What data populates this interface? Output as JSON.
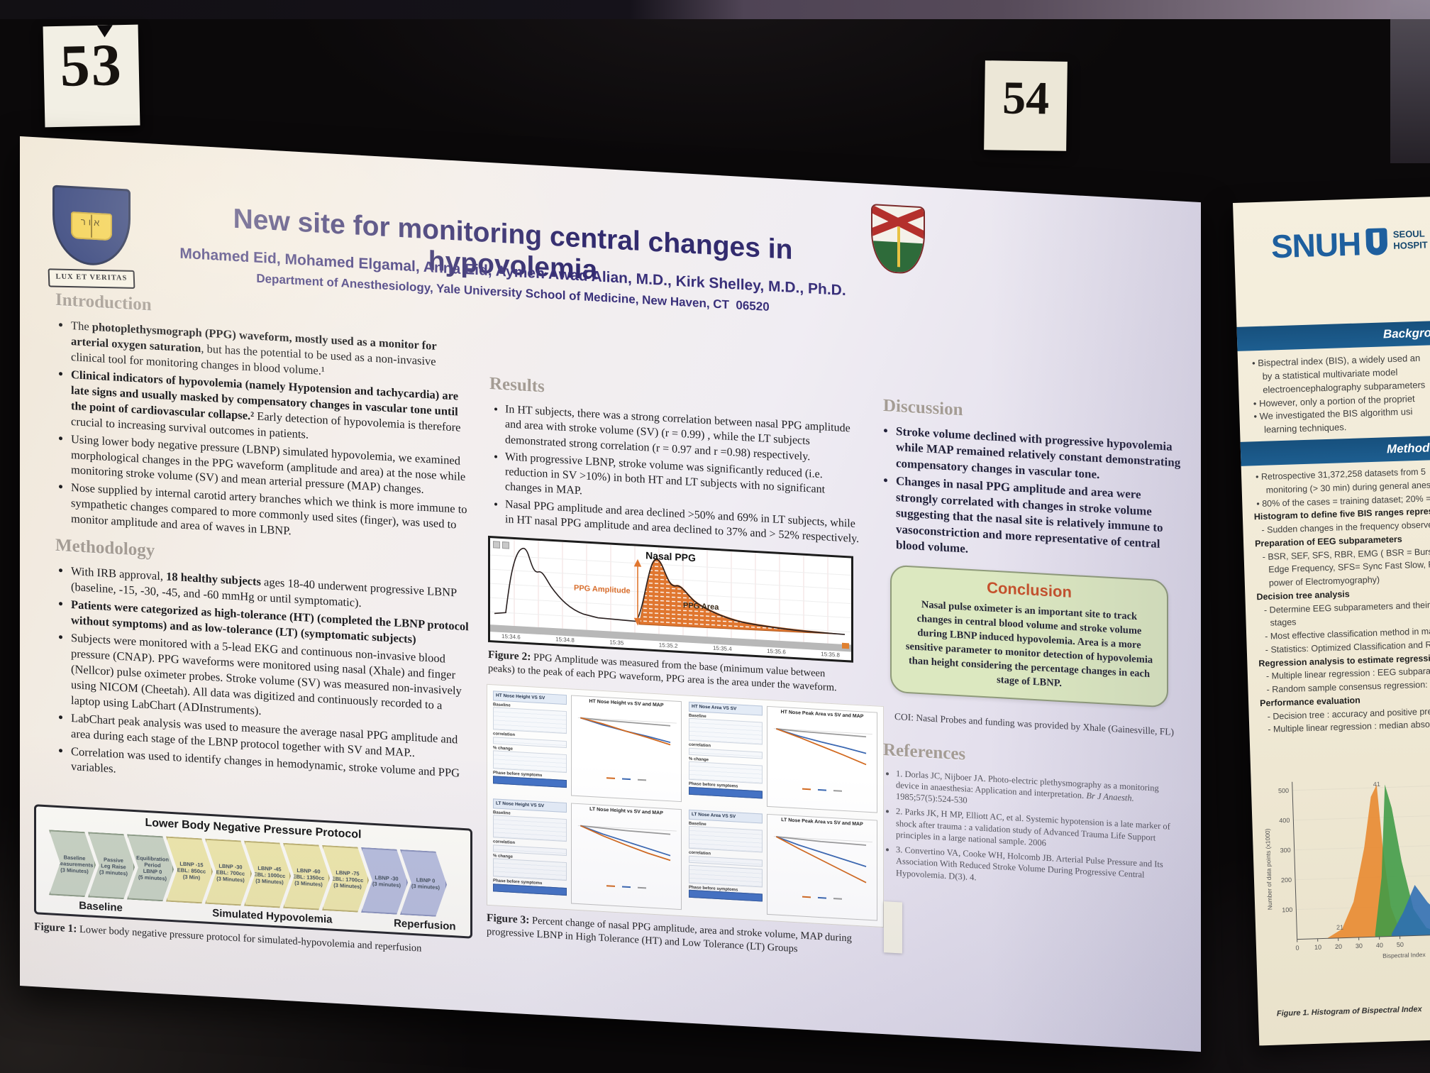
{
  "colors": {
    "title-navy": "#322b6e",
    "heading-gray": "#a49c94",
    "accent-orange": "#d96f2e",
    "conclusion-bg": "#dce8c0",
    "conclusion-title": "#c5512c",
    "chevron-green": "#c9d3c3",
    "chevron-yellow": "#efe8ac",
    "chevron-blue": "#b8bedd",
    "snuh-blue": "#1e5f9e",
    "banner-blue": "#1a5a8c"
  },
  "scene": {
    "card_left": "53",
    "card_right": "54"
  },
  "poster": {
    "title": "New site for monitoring central changes in hypovolemia",
    "authors": "Mohamed Eid, Mohamed Elgamal, Anna Eid, Aymen Awad Alian, M.D., Kirk Shelley, M.D., Ph.D.",
    "affiliation": "Department of Anesthesiology, Yale University School of Medicine, New Haven, CT  06520",
    "yale_motto": "LUX ET VERITAS",
    "introduction": {
      "heading": "Introduction",
      "bullets": [
        {
          "pre": "The ",
          "bold": "photoplethysmograph (PPG) waveform, mostly used as a monitor for arterial oxygen saturation",
          "rest": ", but has the potential to be used as a non-invasive clinical tool for monitoring changes in blood volume.¹"
        },
        {
          "pre": "",
          "bold": "Clinical indicators of hypovolemia  (namely Hypotension and tachycardia) are late signs and usually masked by compensatory changes in vascular tone until the point of cardiovascular collapse.²",
          "rest": " Early detection of hypovolemia is therefore crucial to increasing survival outcomes in patients."
        },
        {
          "pre": "",
          "bold": "",
          "rest": "Using lower body negative pressure (LBNP) simulated hypovolemia, we examined morphological changes in the PPG waveform (amplitude and area) at the nose while monitoring stroke volume (SV) and mean arterial pressure (MAP) changes."
        },
        {
          "pre": "",
          "bold": "",
          "rest": "Nose supplied by internal carotid artery branches which we think is more immune to sympathetic changes compared to more commonly used sites (finger), was used to monitor amplitude and area of waves in LBNP."
        }
      ]
    },
    "methodology": {
      "heading": "Methodology",
      "bullets": [
        {
          "pre": "With IRB approval, ",
          "bold": "18 healthy subjects",
          "rest": " ages 18-40 underwent progressive LBNP (baseline, -15, -30, -45, and -60 mmHg or until symptomatic)."
        },
        {
          "pre": "",
          "bold": "Patients were categorized as high-tolerance (HT) (completed the LBNP protocol without symptoms) and as low-tolerance (LT) (symptomatic subjects)",
          "rest": ""
        },
        {
          "pre": "",
          "bold": "",
          "rest": "Subjects were monitored with a 5-lead EKG and continuous non-invasive blood pressure (CNAP). PPG waveforms were monitored using nasal (Xhale) and finger (Nellcor) pulse oximeter probes. Stroke volume (SV) was measured non-invasively using NICOM (Cheetah). All data was digitized and continuously recorded to a laptop using LabChart (ADInstruments)."
        },
        {
          "pre": "",
          "bold": "",
          "rest": "LabChart peak analysis was used to measure the average nasal PPG amplitude and area during each stage of the LBNP protocol together with SV and MAP.."
        },
        {
          "pre": "",
          "bold": "",
          "rest": "Correlation was used to identify changes in hemodynamic, stroke volume and PPG variables."
        }
      ]
    },
    "results": {
      "heading": "Results",
      "bullets": [
        "In HT subjects, there was a strong correlation between nasal PPG amplitude and area with stroke volume (SV) (r = 0.99) , while the LT subjects demonstrated strong correlation (r = 0.97 and r =0.98) respectively.",
        "With progressive LBNP, stroke volume was significantly reduced (i.e. reduction in SV >10%) in both HT and LT subjects with no significant changes in MAP.",
        "Nasal PPG amplitude and area declined >50% and 69%  in LT subjects, while in HT nasal PPG amplitude and area declined to 37% and > 52% respectively."
      ]
    },
    "discussion": {
      "heading": "Discussion",
      "bullets": [
        "Stroke volume declined with progressive hypovolemia while MAP remained relatively constant demonstrating compensatory changes in vascular tone.",
        "Changes in nasal PPG amplitude and area were strongly correlated with changes in stroke volume suggesting that the nasal site is relatively immune to vasoconstriction and more representative of central blood volume."
      ]
    },
    "conclusion": {
      "heading": "Conclusion",
      "text": "Nasal pulse oximeter is an important site to track changes in central blood volume and stroke volume during LBNP induced hypovolemia. Area is a more sensitive parameter to monitor detection of hypovolemia than height considering the percentage changes in each stage of LBNP."
    },
    "coi": "COI: Nasal Probes and funding was provided by Xhale (Gainesville, FL)",
    "references": {
      "heading": "References",
      "items": [
        {
          "pre": "1. Dorlas JC, Nijboer JA. Photo-electric plethysmography as a monitoring device in anaesthesia: Application and interpretation. ",
          "it": "Br J Anaesth.",
          "post": " 1985;57(5):524-530"
        },
        {
          "pre": "2.  Parks JK, H MP, Elliott AC, et al. Systemic hypotension is a late marker of shock after trauma : a validation study of Advanced Trauma Life Support principles in a large national sample. 2006",
          "it": "",
          "post": ""
        },
        {
          "pre": "3. Convertino VA, Cooke WH, Holcomb JB. Arterial Pulse Pressure and Its Association With Reduced Stroke Volume During Progressive Central Hypovolemia. D(3). 4.",
          "it": "",
          "post": ""
        }
      ]
    },
    "figure1": {
      "title": "Lower Body Negative Pressure Protocol",
      "groups": [
        "Baseline",
        "Simulated Hypovolemia",
        "Reperfusion"
      ],
      "steps": [
        {
          "l1": "Baseline",
          "l2": "Measurements",
          "l3": "(3 Minutes)"
        },
        {
          "l1": "Passive",
          "l2": "Leg Raise",
          "l3": "(3 minutes)"
        },
        {
          "l1": "Equilibration",
          "l2": "Period",
          "l3": "LBNP 0",
          "l4": "(5 minutes)"
        },
        {
          "l1": "LBNP -15",
          "l2": "EBL: 850cc",
          "l3": "(3 Min)"
        },
        {
          "l1": "LBNP -30",
          "l2": "EBL: 700cc",
          "l3": "(3 Minutes)"
        },
        {
          "l1": "LBNP -45",
          "l2": "EBL: 1000cc",
          "l3": "(3 Minutes)"
        },
        {
          "l1": "LBNP -60",
          "l2": "EBL: 1350cc",
          "l3": "(3 Minutes)"
        },
        {
          "l1": "LBNP -75",
          "l2": "EBL: 1700cc",
          "l3": "(3 Minutes)"
        },
        {
          "l1": "LBNP -30",
          "l2": "(3 minutes)"
        },
        {
          "l1": "LBNP 0",
          "l2": "(3 minutes)"
        }
      ],
      "caption_bold": "Figure 1:",
      "caption_rest": " Lower body negative pressure protocol for simulated-hypovolemia and reperfusion"
    },
    "figure2": {
      "title": "Nasal PPG",
      "amplitude_label": "PPG Amplitude",
      "area_label": "PPG Area",
      "x_ticks": [
        "15:34.6",
        "15:34.8",
        "15:35",
        "15:35.2",
        "15:35.4",
        "15:35.6",
        "15:35.8"
      ],
      "caption_bold": "Figure 2:",
      "caption_rest": " PPG Amplitude was measured from the base (minimum value between peaks) to the peak of each PPG waveform, PPG area is the area under the waveform."
    },
    "figure3": {
      "row_labels": [
        "Baseline",
        "correlation",
        "% change",
        "Phase before symptoms"
      ],
      "panels": [
        {
          "table_title": "HT Nose Height VS SV",
          "chart_title": "HT Nose Height vs SV and MAP",
          "series": {
            "ppg": [
              0,
              -8,
              -18,
              -27,
              -37
            ],
            "sv": [
              0,
              -10,
              -18,
              -25,
              -33
            ],
            "map": [
              0,
              -2,
              -3,
              -4,
              -5
            ]
          }
        },
        {
          "table_title": "HT Nose Area VS SV",
          "chart_title": "HT Nose Peak Area vs SV and MAP",
          "series": {
            "ppg": [
              0,
              -12,
              -25,
              -38,
              -52
            ],
            "sv": [
              0,
              -10,
              -18,
              -25,
              -33
            ],
            "map": [
              0,
              -2,
              -3,
              -4,
              -5
            ]
          }
        },
        {
          "table_title": "LT Nose Height VS SV",
          "chart_title": "LT Nose Height vs SV and MAP",
          "series": {
            "ppg": [
              0,
              -15,
              -28,
              -40,
              -50
            ],
            "sv": [
              0,
              -12,
              -22,
              -32,
              -42
            ],
            "map": [
              0,
              -2,
              -4,
              -5,
              -6
            ]
          }
        },
        {
          "table_title": "LT Nose Area VS SV",
          "chart_title": "LT Nose Peak Area vs SV and MAP",
          "series": {
            "ppg": [
              0,
              -18,
              -35,
              -52,
              -69
            ],
            "sv": [
              0,
              -12,
              -22,
              -32,
              -42
            ],
            "map": [
              0,
              -2,
              -4,
              -5,
              -6
            ]
          }
        }
      ],
      "caption_bold": "Figure 3:",
      "caption_rest": " Percent change of nasal PPG amplitude, area and stroke volume, MAP during progressive LBNP in High Tolerance (HT) and Low Tolerance (LT) Groups"
    }
  },
  "snuh": {
    "logo": "SNUH",
    "logo_line1": "SEOUL",
    "logo_line2": "HOSPIT",
    "banner_background": "Background",
    "banner_methods": "Methods",
    "background_lines": [
      {
        "t": "b",
        "s": "Bispectral index (BIS), a widely used an"
      },
      {
        "t": "c",
        "s": "by a statistical multivariate model"
      },
      {
        "t": "c",
        "s": "electroencephalography subparameters"
      },
      {
        "t": "b",
        "s": "However, only a portion of the propriet"
      },
      {
        "t": "b",
        "s": "We investigated the BIS algorithm usi"
      },
      {
        "t": "c",
        "s": "learning techniques."
      }
    ],
    "methods_lines": [
      {
        "t": "b",
        "s": "Retrospective 31,372,258 datasets from 5"
      },
      {
        "t": "c",
        "s": "monitoring (> 30 min) during general anes"
      },
      {
        "t": "b",
        "s": "80% of the cases = training dataset; 20% ="
      },
      {
        "t": "h",
        "s": "Histogram to define five BIS ranges represe"
      },
      {
        "t": "d",
        "s": "Sudden changes in the frequency observe"
      },
      {
        "t": "h",
        "s": "Preparation of EEG subparameters"
      },
      {
        "t": "d",
        "s": "BSR, SEF, SFS, RBR, EMG ( BSR = Burst Supp"
      },
      {
        "t": "c",
        "s": "Edge Frequency, SFS= Sync Fast Slow, RBR ="
      },
      {
        "t": "c",
        "s": "power of Electromyography)"
      },
      {
        "t": "h",
        "s": "Decision tree analysis"
      },
      {
        "t": "d",
        "s": "Determine EEG subparameters and their th"
      },
      {
        "t": "c",
        "s": "stages"
      },
      {
        "t": "d",
        "s": "Most effective classification method in mach"
      },
      {
        "t": "d",
        "s": "Statistics: Optimized Classification and Regre"
      },
      {
        "t": "h",
        "s": "Regression analysis to estimate regression coe"
      },
      {
        "t": "d",
        "s": "Multiple linear regression : EEG subparame"
      },
      {
        "t": "d",
        "s": "Random sample consensus regression: avoid"
      },
      {
        "t": "h",
        "s": "Performance evaluation"
      },
      {
        "t": "d",
        "s": "Decision tree : accuracy and positive predicti"
      },
      {
        "t": "d",
        "s": "Multiple linear regression : median absolute e"
      }
    ],
    "figure": {
      "ylabel": "Number of data points (x1000)",
      "xlabel": "Bispectral Index",
      "yticks": [
        "500",
        "400",
        "300",
        "200",
        "100"
      ],
      "xticks": [
        "0",
        "10",
        "20",
        "30",
        "40",
        "50"
      ],
      "ann_top": "41",
      "ann_low": "21",
      "caption": "Figure 1. Histogram of Bispectral Index",
      "hist": [
        {
          "c": "#e8872c",
          "p": [
            [
              15,
              2
            ],
            [
              22,
              30
            ],
            [
              28,
              120
            ],
            [
              34,
              300
            ],
            [
              38,
              470
            ],
            [
              41,
              510
            ],
            [
              43,
              300
            ],
            [
              46,
              100
            ],
            [
              50,
              20
            ],
            [
              55,
              4
            ]
          ]
        },
        {
          "c": "#3f9b45",
          "p": [
            [
              38,
              10
            ],
            [
              42,
              200
            ],
            [
              45,
              510
            ],
            [
              48,
              430
            ],
            [
              52,
              250
            ],
            [
              57,
              90
            ],
            [
              63,
              25
            ],
            [
              70,
              6
            ]
          ]
        },
        {
          "c": "#2e6db4",
          "p": [
            [
              46,
              8
            ],
            [
              52,
              80
            ],
            [
              58,
              170
            ],
            [
              64,
              110
            ],
            [
              72,
              55
            ],
            [
              82,
              25
            ],
            [
              92,
              10
            ],
            [
              100,
              4
            ]
          ]
        }
      ]
    }
  }
}
